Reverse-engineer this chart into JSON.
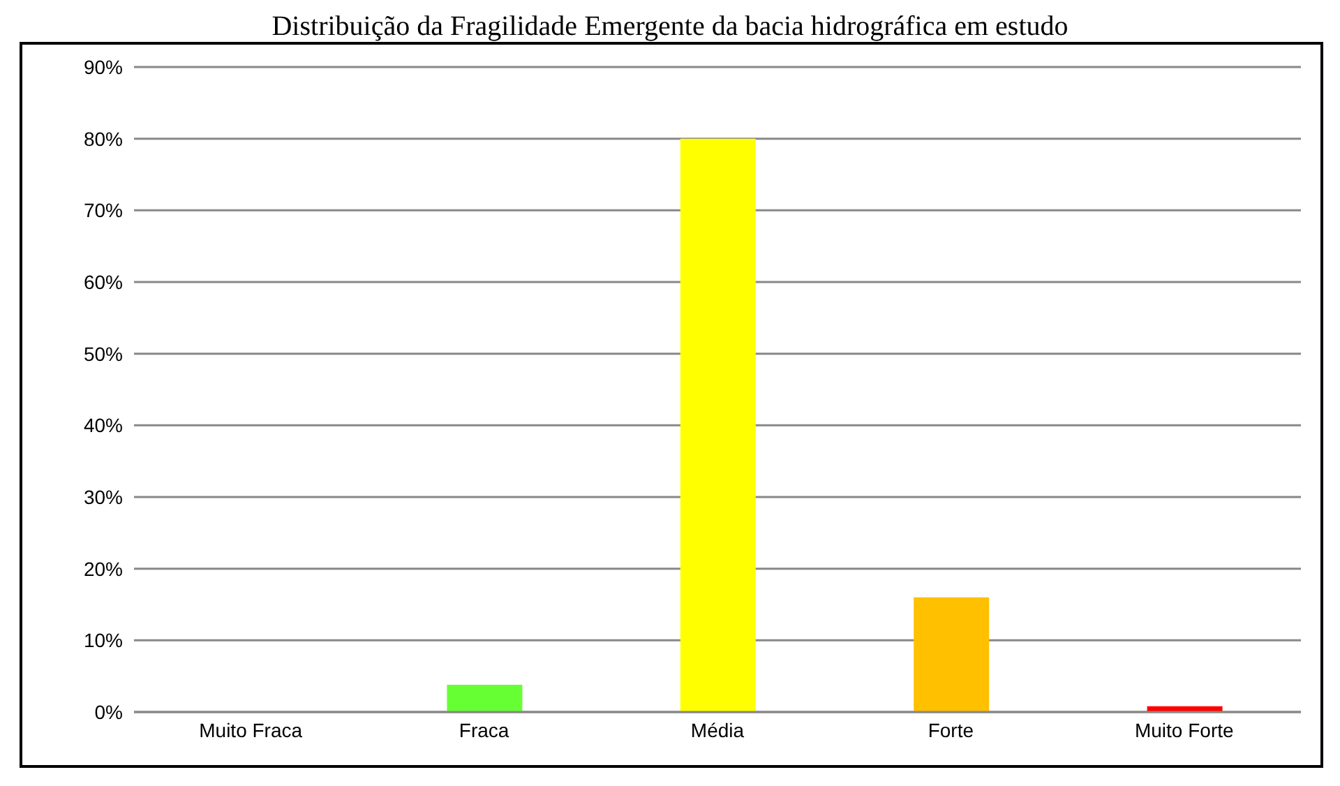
{
  "chart_data": {
    "type": "bar",
    "title": "Distribuição da Fragilidade Emergente da bacia hidrográfica em estudo",
    "categories": [
      "Muito Fraca",
      "Fraca",
      "Média",
      "Forte",
      "Muito Forte"
    ],
    "values": [
      0,
      3.8,
      80,
      16,
      0.8
    ],
    "colors": [
      "#66ff33",
      "#66ff33",
      "#ffff00",
      "#ffc000",
      "#ff0000"
    ],
    "ylim": [
      0,
      90
    ],
    "yticks": [
      {
        "value": 0,
        "label": "0%"
      },
      {
        "value": 10,
        "label": "10%"
      },
      {
        "value": 20,
        "label": "20%"
      },
      {
        "value": 30,
        "label": "30%"
      },
      {
        "value": 40,
        "label": "40%"
      },
      {
        "value": 50,
        "label": "50%"
      },
      {
        "value": 60,
        "label": "60%"
      },
      {
        "value": 70,
        "label": "70%"
      },
      {
        "value": 80,
        "label": "80%"
      },
      {
        "value": 90,
        "label": "90%"
      }
    ],
    "grid": "y"
  }
}
